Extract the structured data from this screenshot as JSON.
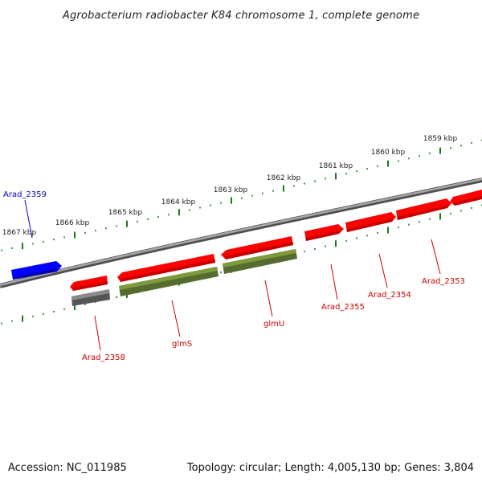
{
  "title": "Agrobacterium radiobacter K84 chromosome 1, complete genome",
  "footer": {
    "accession": "Accession: NC_011985",
    "summary": "Topology: circular; Length: 4,005,130 bp; Genes: 3,804"
  },
  "colors": {
    "backbone": "#808080",
    "tick": "#1a7a1a",
    "gene_red": "#ff0000",
    "gene_green": "#6b8e23",
    "gene_gray": "#666666",
    "gene_blue": "#0000ff",
    "label_red": "#cc0000",
    "label_blue": "#0000cc"
  },
  "scale_kbp": [
    "1859 kbp",
    "1860 kbp",
    "1861 kbp",
    "1862 kbp",
    "1863 kbp",
    "1864 kbp",
    "1865 kbp",
    "1866 kbp",
    "1867 kbp"
  ],
  "genes": [
    {
      "label": "Arad_2359",
      "color": "gene_blue",
      "strand": "+"
    },
    {
      "label": "Arad_2358",
      "color": "gene_gray",
      "strand": "-"
    },
    {
      "label": "glmS",
      "color": "gene_green",
      "strand": "-"
    },
    {
      "label": "glmU",
      "color": "gene_green",
      "strand": "-"
    },
    {
      "label": "Arad_2355",
      "color": "gene_red",
      "strand": "+"
    },
    {
      "label": "Arad_2354",
      "color": "gene_red",
      "strand": "+"
    },
    {
      "label": "Arad_2353",
      "color": "gene_red",
      "strand": "+"
    }
  ]
}
